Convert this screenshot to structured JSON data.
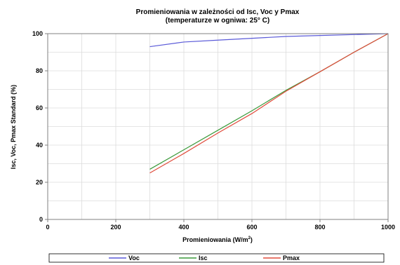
{
  "chart_data": {
    "type": "line",
    "title": "Promieniowania w zależności od Isc, Voc y Pmax",
    "subtitle": "(temperaturze w ogniwa: 25° C)",
    "xlabel": "Promieniowania (W/m",
    "xlabel_superscript": "2",
    "xlabel_suffix": ")",
    "ylabel": "Isc, Voc, Pmax Standard (%)",
    "xlim": [
      0,
      1000
    ],
    "ylim": [
      0,
      100
    ],
    "x_ticks": [
      0,
      200,
      400,
      600,
      800,
      1000
    ],
    "y_ticks": [
      0,
      20,
      40,
      60,
      80,
      100
    ],
    "grid": true,
    "legend_position": "bottom",
    "series": [
      {
        "name": "Voc",
        "color": "#5a5ad8",
        "x": [
          300,
          400,
          500,
          600,
          700,
          800,
          900,
          1000
        ],
        "y": [
          93,
          95.5,
          96.5,
          97.5,
          98.5,
          99,
          99.5,
          100
        ]
      },
      {
        "name": "Isc",
        "color": "#3a9a3a",
        "x": [
          300,
          400,
          500,
          600,
          700,
          800,
          900,
          1000
        ],
        "y": [
          27,
          37.5,
          48,
          58.5,
          69.5,
          79.5,
          90,
          100
        ]
      },
      {
        "name": "Pmax",
        "color": "#e04c3c",
        "x": [
          300,
          400,
          500,
          600,
          700,
          800,
          900,
          1000
        ],
        "y": [
          25,
          35.5,
          46.5,
          57,
          69,
          79.5,
          90,
          100
        ]
      }
    ]
  }
}
